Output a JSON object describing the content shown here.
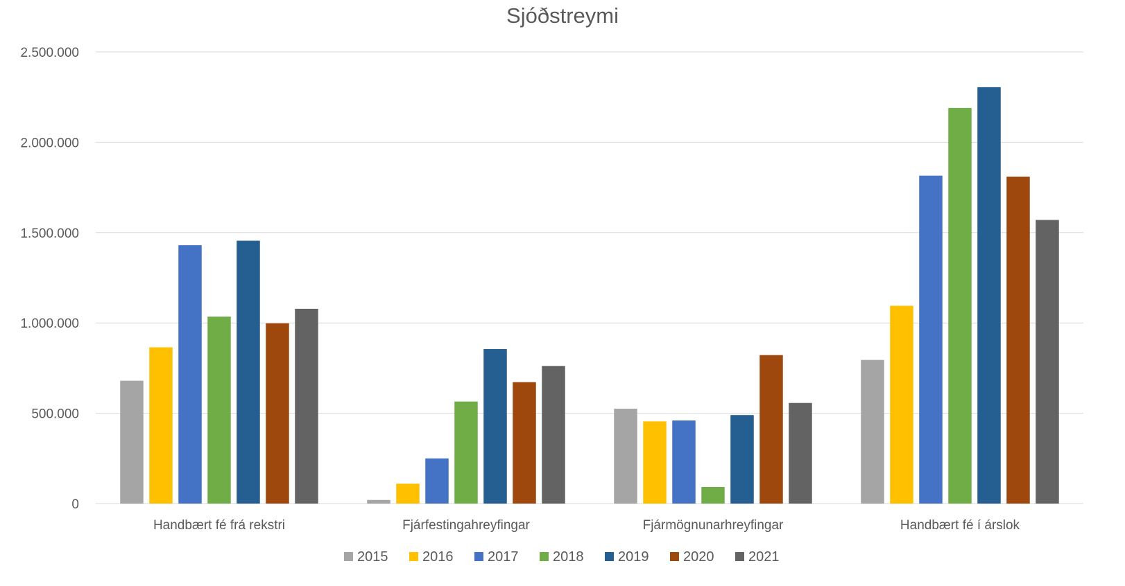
{
  "chart_data": {
    "type": "bar",
    "title": "Sjóðstreymi",
    "xlabel": "",
    "ylabel": "",
    "ylim": [
      0,
      2500000
    ],
    "yticks": [
      0,
      500000,
      1000000,
      1500000,
      2000000,
      2500000
    ],
    "ytick_labels": [
      "0",
      "500.000",
      "1.000.000",
      "1.500.000",
      "2.000.000",
      "2.500.000"
    ],
    "grid": true,
    "legend_position": "bottom",
    "categories": [
      "Handbært fé frá rekstri",
      "Fjárfestingahreyfingar",
      "Fjármögnunarhreyfingar",
      "Handbært fé í árslok"
    ],
    "series": [
      {
        "name": "2015",
        "color": "#a5a5a5",
        "values": [
          680000,
          20000,
          525000,
          795000
        ]
      },
      {
        "name": "2016",
        "color": "#ffc000",
        "values": [
          865000,
          110000,
          455000,
          1095000
        ]
      },
      {
        "name": "2017",
        "color": "#4472c4",
        "values": [
          1430000,
          250000,
          460000,
          1815000
        ]
      },
      {
        "name": "2018",
        "color": "#70ad47",
        "values": [
          1035000,
          565000,
          92000,
          2190000
        ]
      },
      {
        "name": "2019",
        "color": "#255e91",
        "values": [
          1455000,
          855000,
          490000,
          2305000
        ]
      },
      {
        "name": "2020",
        "color": "#9e480e",
        "values": [
          998000,
          672000,
          822000,
          1810000
        ]
      },
      {
        "name": "2021",
        "color": "#636363",
        "values": [
          1078000,
          762000,
          557000,
          1570000
        ]
      }
    ]
  }
}
